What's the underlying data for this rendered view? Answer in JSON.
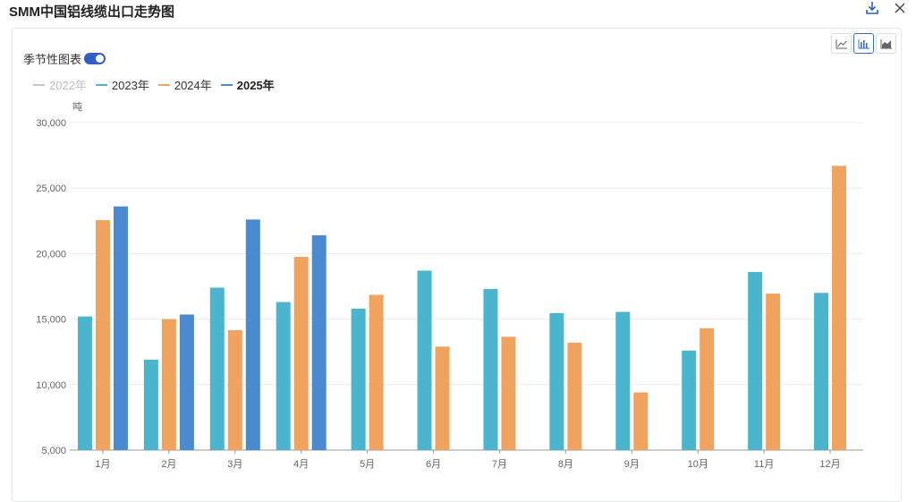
{
  "title": "SMM中国铝线缆出口走势图",
  "icons": {
    "download": "download-icon",
    "close": "close-icon"
  },
  "toolbar": {
    "modes": [
      "line-chart-icon",
      "bar-chart-icon",
      "area-chart-icon"
    ],
    "active_mode": "bar"
  },
  "seasonal_label": "季节性图表",
  "seasonal_enabled": true,
  "colors": {
    "2022": "#c8c8c8",
    "2023": "#4ab5cc",
    "2024": "#f0a35e",
    "2025": "#4a8ad0"
  },
  "legend": [
    {
      "label": "2022年",
      "key": "2022",
      "active": false,
      "bold": false
    },
    {
      "label": "2023年",
      "key": "2023",
      "active": true,
      "bold": false
    },
    {
      "label": "2024年",
      "key": "2024",
      "active": true,
      "bold": false
    },
    {
      "label": "2025年",
      "key": "2025",
      "active": true,
      "bold": true
    }
  ],
  "chart_data": {
    "type": "bar",
    "ylabel": "吨",
    "ylim": [
      5000,
      30000
    ],
    "yticks": [
      5000,
      10000,
      15000,
      20000,
      25000,
      30000
    ],
    "ytick_labels": [
      "5,000",
      "10,000",
      "15,000",
      "20,000",
      "25,000",
      "30,000"
    ],
    "grid": true,
    "legend_position": "top-left",
    "categories": [
      "1月",
      "2月",
      "3月",
      "4月",
      "5月",
      "6月",
      "7月",
      "8月",
      "9月",
      "10月",
      "11月",
      "12月"
    ],
    "series": [
      {
        "name": "2023年",
        "key": "2023",
        "values": [
          15200,
          11900,
          17400,
          16300,
          15800,
          18700,
          17300,
          15450,
          15550,
          12600,
          18600,
          17000
        ]
      },
      {
        "name": "2024年",
        "key": "2024",
        "values": [
          22550,
          15000,
          14150,
          19750,
          16850,
          12900,
          13650,
          13200,
          9400,
          14300,
          16950,
          26700
        ]
      },
      {
        "name": "2025年",
        "key": "2025",
        "values": [
          23600,
          15350,
          22600,
          21400,
          null,
          null,
          null,
          null,
          null,
          null,
          null,
          null
        ]
      }
    ]
  }
}
